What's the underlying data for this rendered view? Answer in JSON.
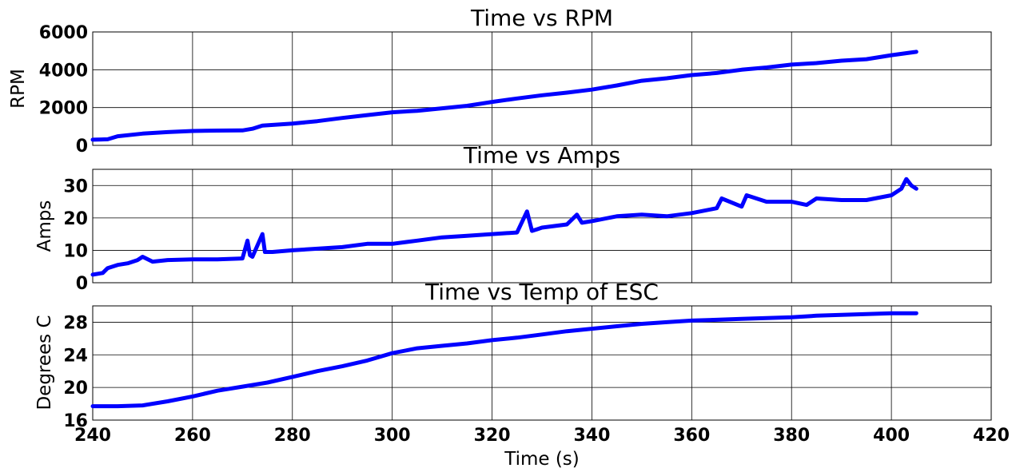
{
  "figure": {
    "xlabel": "Time (s)",
    "xlim": [
      240,
      420
    ],
    "xticks": [
      240,
      260,
      280,
      300,
      320,
      340,
      360,
      380,
      400,
      420
    ],
    "xtick_labels": [
      "240",
      "260",
      "280",
      "300",
      "320",
      "340",
      "360",
      "380",
      "400",
      "420"
    ]
  },
  "chart_data": [
    {
      "type": "line",
      "title": "Time vs RPM",
      "ylabel": "RPM",
      "ylim": [
        0,
        6000
      ],
      "yticks": [
        0,
        2000,
        4000,
        6000
      ],
      "ytick_labels": [
        "0",
        "2000",
        "4000",
        "6000"
      ],
      "grid": true,
      "series": [
        {
          "color": "#0000ff",
          "x": [
            240,
            243,
            245,
            250,
            255,
            260,
            265,
            270,
            272,
            274,
            280,
            285,
            290,
            295,
            300,
            305,
            310,
            315,
            320,
            325,
            330,
            335,
            340,
            345,
            350,
            355,
            360,
            365,
            370,
            375,
            380,
            385,
            390,
            395,
            400,
            405
          ],
          "y": [
            300,
            320,
            480,
            620,
            700,
            760,
            780,
            790,
            880,
            1050,
            1150,
            1280,
            1450,
            1600,
            1750,
            1830,
            1960,
            2090,
            2300,
            2480,
            2650,
            2790,
            2950,
            3170,
            3420,
            3550,
            3720,
            3830,
            4000,
            4120,
            4270,
            4350,
            4480,
            4560,
            4770,
            4950
          ]
        }
      ]
    },
    {
      "type": "line",
      "title": "Time vs Amps",
      "ylabel": "Amps",
      "ylim": [
        0,
        35
      ],
      "yticks": [
        0,
        10,
        20,
        30
      ],
      "ytick_labels": [
        "0",
        "10",
        "20",
        "30"
      ],
      "grid": true,
      "series": [
        {
          "color": "#0000ff",
          "x": [
            240,
            242,
            243,
            245,
            247,
            249,
            250,
            252,
            255,
            260,
            265,
            270,
            271,
            271.5,
            272,
            274,
            274.5,
            276,
            280,
            285,
            290,
            295,
            300,
            305,
            310,
            315,
            320,
            325,
            327,
            328,
            329,
            330,
            335,
            337,
            338,
            340,
            345,
            350,
            355,
            360,
            365,
            366,
            370,
            371,
            375,
            380,
            383,
            385,
            390,
            395,
            400,
            402,
            403,
            404,
            405
          ],
          "y": [
            2.5,
            3,
            4.5,
            5.5,
            6,
            7,
            8,
            6.5,
            7,
            7.2,
            7.2,
            7.5,
            13,
            8.5,
            8,
            15,
            9.5,
            9.5,
            10,
            10.5,
            11,
            12,
            12,
            13,
            14,
            14.5,
            15,
            15.5,
            22,
            16,
            16.5,
            17,
            18,
            21,
            18.5,
            19,
            20.5,
            21,
            20.5,
            21.5,
            23,
            26,
            23.5,
            27,
            25,
            25,
            24,
            26,
            25.5,
            25.5,
            27,
            29,
            32,
            30,
            29
          ]
        }
      ]
    },
    {
      "type": "line",
      "title": "Time vs Temp of ESC",
      "ylabel": "Degrees C",
      "ylim": [
        16,
        30
      ],
      "yticks": [
        16,
        20,
        24,
        28
      ],
      "ytick_labels": [
        "16",
        "20",
        "24",
        "28"
      ],
      "grid": true,
      "series": [
        {
          "color": "#0000ff",
          "x": [
            240,
            245,
            250,
            255,
            260,
            265,
            270,
            275,
            280,
            285,
            290,
            295,
            300,
            305,
            310,
            315,
            320,
            325,
            330,
            335,
            340,
            345,
            350,
            355,
            360,
            365,
            370,
            375,
            380,
            385,
            390,
            395,
            400,
            405
          ],
          "y": [
            17.7,
            17.7,
            17.8,
            18.3,
            18.9,
            19.6,
            20.1,
            20.6,
            21.3,
            22,
            22.6,
            23.3,
            24.2,
            24.8,
            25.1,
            25.4,
            25.8,
            26.1,
            26.5,
            26.9,
            27.2,
            27.5,
            27.8,
            28,
            28.2,
            28.3,
            28.4,
            28.5,
            28.6,
            28.8,
            28.9,
            29,
            29.1,
            29.1
          ]
        }
      ]
    }
  ]
}
